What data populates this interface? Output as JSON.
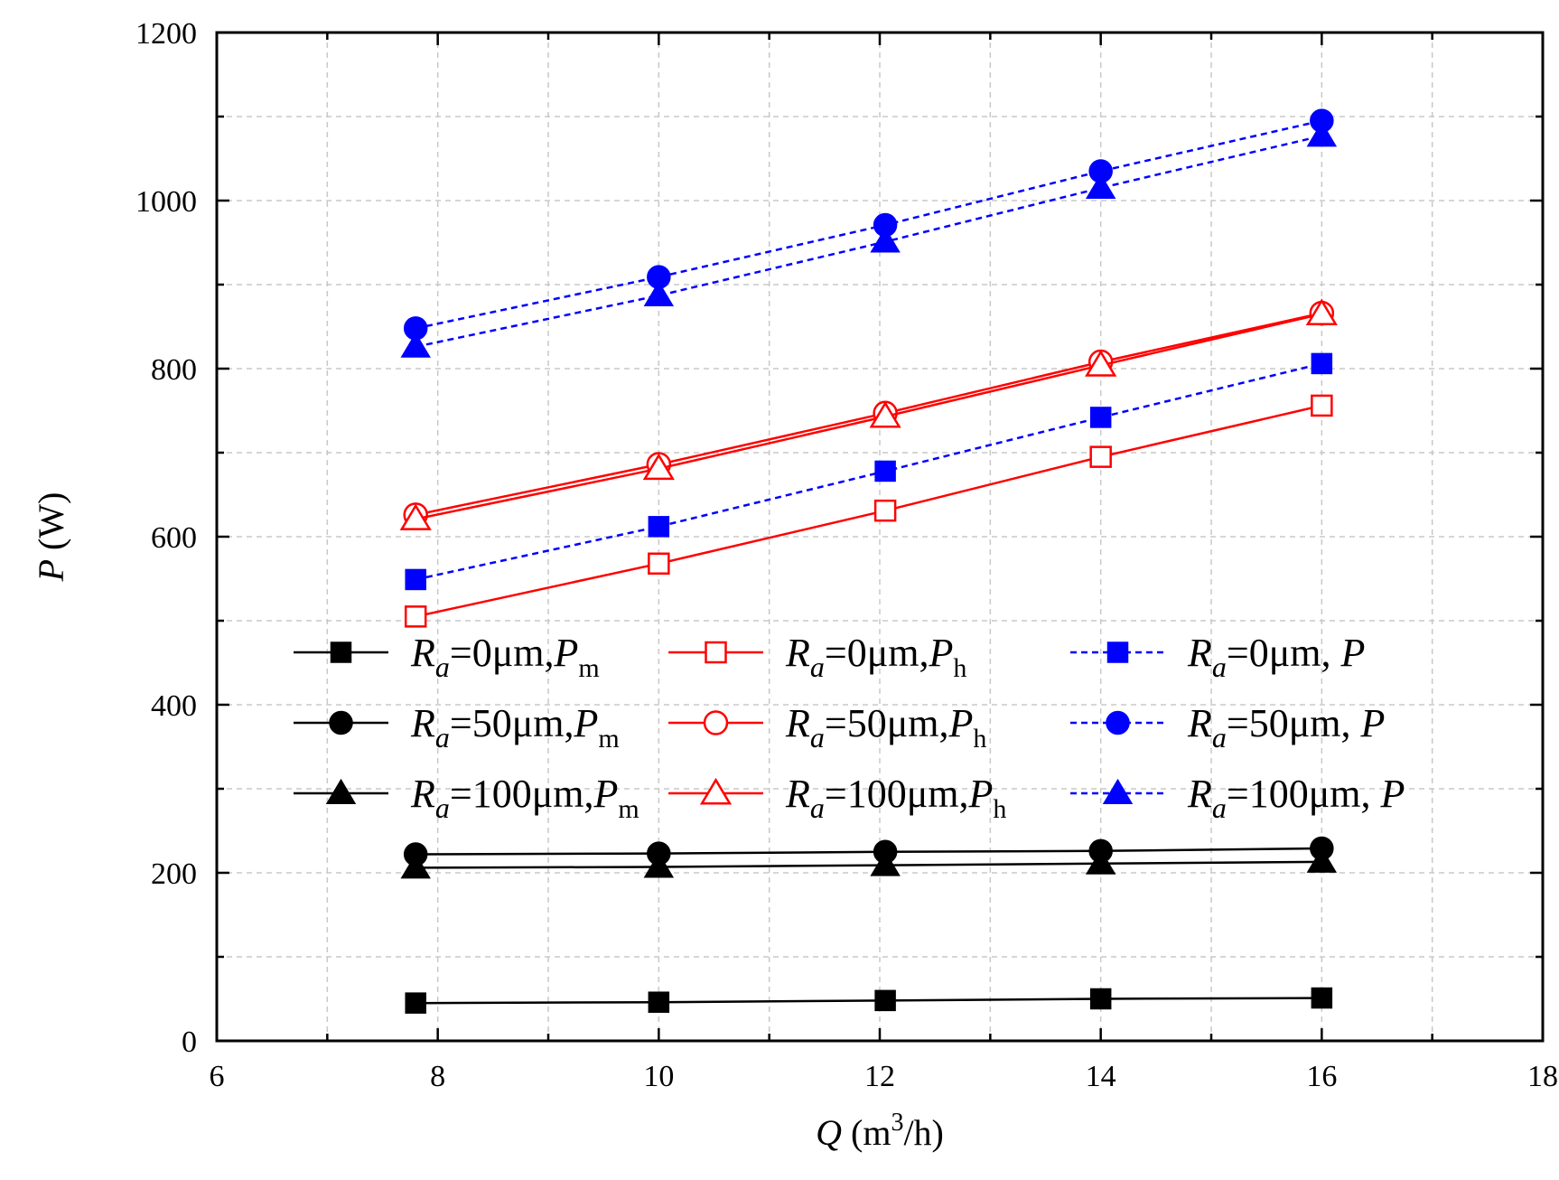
{
  "chart_data": {
    "type": "line",
    "xlabel": {
      "var": "Q",
      "unit_prefix": "(m",
      "unit_sup": "3",
      "unit_suffix": "/h)"
    },
    "ylabel": {
      "var": "P",
      "unit": "(W)"
    },
    "xlim": [
      6,
      18
    ],
    "ylim": [
      0,
      1200
    ],
    "xticks": [
      6,
      8,
      10,
      12,
      14,
      16,
      18
    ],
    "yticks": [
      0,
      200,
      400,
      600,
      800,
      1000,
      1200
    ],
    "grid": true,
    "legend_position": "center",
    "x": [
      7.8,
      10,
      12.05,
      14,
      16
    ],
    "series": [
      {
        "id": "ra0-pm",
        "ra_value": "=0μm,",
        "quantity": "P",
        "sub": "m",
        "color": "#000000",
        "marker": "square",
        "filled": true,
        "dashed": false,
        "values": [
          45,
          46,
          48,
          50,
          51
        ]
      },
      {
        "id": "ra50-pm",
        "ra_value": "=50μm,",
        "quantity": "P",
        "sub": "m",
        "color": "#000000",
        "marker": "circle",
        "filled": true,
        "dashed": false,
        "values": [
          222,
          223,
          225,
          226,
          229
        ]
      },
      {
        "id": "ra100-pm",
        "ra_value": "=100μm,",
        "quantity": "P",
        "sub": "m",
        "color": "#000000",
        "marker": "triangle",
        "filled": true,
        "dashed": false,
        "values": [
          206,
          207,
          209,
          211,
          213
        ]
      },
      {
        "id": "ra0-ph",
        "ra_value": "=0μm,",
        "quantity": "P",
        "sub": "h",
        "color": "#ff0000",
        "marker": "square",
        "filled": false,
        "dashed": false,
        "values": [
          505,
          568,
          631,
          695,
          756
        ]
      },
      {
        "id": "ra50-ph",
        "ra_value": "=50μm,",
        "quantity": "P",
        "sub": "h",
        "color": "#ff0000",
        "marker": "circle",
        "filled": false,
        "dashed": false,
        "values": [
          626,
          686,
          747,
          808,
          866
        ]
      },
      {
        "id": "ra100-ph",
        "ra_value": "=100μm,",
        "quantity": "P",
        "sub": "h",
        "color": "#ff0000",
        "marker": "triangle",
        "filled": false,
        "dashed": false,
        "values": [
          621,
          681,
          743,
          804,
          865
        ]
      },
      {
        "id": "ra0-p",
        "ra_value": "=0μm,",
        "quantity": " P",
        "sub": "",
        "color": "#0000ff",
        "marker": "square",
        "filled": true,
        "dashed": true,
        "values": [
          549,
          612,
          678,
          742,
          806
        ]
      },
      {
        "id": "ra50-p",
        "ra_value": "=50μm,",
        "quantity": " P",
        "sub": "",
        "color": "#0000ff",
        "marker": "circle",
        "filled": true,
        "dashed": true,
        "values": [
          848,
          909,
          971,
          1035,
          1095
        ]
      },
      {
        "id": "ra100-p",
        "ra_value": "=100μm,",
        "quantity": " P",
        "sub": "",
        "color": "#0000ff",
        "marker": "triangle",
        "filled": true,
        "dashed": true,
        "values": [
          826,
          887,
          951,
          1015,
          1077
        ]
      }
    ],
    "legend_symbol": "R",
    "legend_symbol_sub": "a"
  }
}
